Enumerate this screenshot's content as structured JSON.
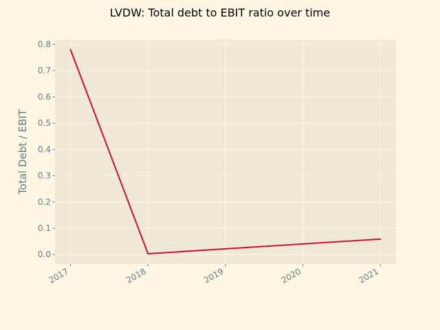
{
  "chart_data": {
    "type": "line",
    "title": "LVDW: Total debt to EBIT ratio over time",
    "xlabel": "",
    "ylabel": "Total Debt / EBIT",
    "x": [
      "2017",
      "2018",
      "2019",
      "2020",
      "2021"
    ],
    "series": [
      {
        "x": [
          "2017",
          "2018",
          "2021"
        ],
        "values": [
          0.78,
          0.003,
          0.059
        ]
      }
    ],
    "x_ticks": [
      "2017",
      "2018",
      "2019",
      "2020",
      "2021"
    ],
    "y_ticks": [
      "0.0",
      "0.1",
      "0.2",
      "0.3",
      "0.4",
      "0.5",
      "0.6",
      "0.7",
      "0.8"
    ],
    "ylim": [
      -0.036,
      0.818
    ],
    "grid": true,
    "colors": {
      "background": "#fdf6e3",
      "plot_background": "#eee8d5",
      "line": "#d30a3d",
      "tick": "#657b83",
      "grid": "#fdf6e3"
    }
  }
}
